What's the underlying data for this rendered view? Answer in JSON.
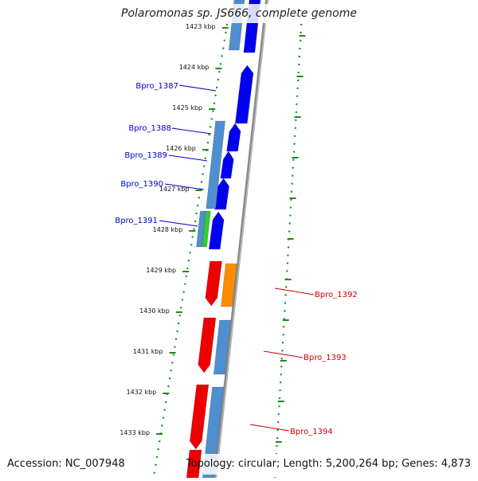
{
  "title": "Polaromonas sp. JS666, complete genome",
  "footer": {
    "accession": "Accession: NC_007948",
    "topology": "Topology: circular; Length: 5,200,264 bp; Genes: 4,873"
  },
  "colors": {
    "background": "#ffffff",
    "backbone": "#8a8a8a",
    "tick": "#1e8a1e",
    "gene_blue": "#0000ee",
    "gene_steel": "#4f8fcf",
    "gene_red": "#ee0000",
    "gene_orange": "#ff8c00",
    "gene_green": "#33cc33",
    "label_blue": "#0000cc",
    "label_red": "#cc0000"
  },
  "scale": {
    "unit": "kbp",
    "labels": [
      "1423 kbp",
      "1424 kbp",
      "1425 kbp",
      "1426 kbp",
      "1427 kbp",
      "1428 kbp",
      "1429 kbp",
      "1430 kbp",
      "1431 kbp",
      "1432 kbp",
      "1433 kbp"
    ],
    "start_kbp": 1423,
    "end_kbp": 1433
  },
  "genes": [
    {
      "label": "Bpro_1387",
      "strand": "left",
      "color": "gene_blue"
    },
    {
      "label": "Bpro_1388",
      "strand": "left",
      "color": "gene_blue"
    },
    {
      "label": "Bpro_1389",
      "strand": "left",
      "color": "gene_blue"
    },
    {
      "label": "Bpro_1390",
      "strand": "left",
      "color": "gene_blue"
    },
    {
      "label": "Bpro_1391",
      "strand": "left",
      "color": "gene_blue"
    },
    {
      "label": "Bpro_1392",
      "strand": "right",
      "color": "gene_red"
    },
    {
      "label": "Bpro_1393",
      "strand": "right",
      "color": "gene_red"
    },
    {
      "label": "Bpro_1394",
      "strand": "right",
      "color": "gene_red"
    }
  ]
}
